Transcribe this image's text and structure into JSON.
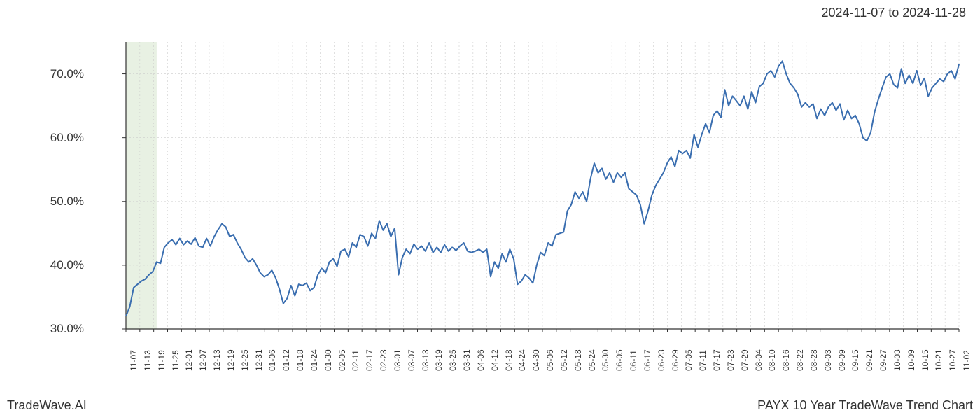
{
  "date_range": "2024-11-07 to 2024-11-28",
  "footer_left": "TradeWave.AI",
  "footer_right": "PAYX 10 Year TradeWave Trend Chart",
  "chart": {
    "type": "line",
    "line_color": "#3a6eb0",
    "line_width": 2.0,
    "background_color": "#ffffff",
    "grid_color": "#cccccc",
    "grid_style": "dashed",
    "axis_line_color": "#333333",
    "highlight_band_color": "#d8e8d0",
    "highlight_start_index": 0,
    "highlight_end_index": 8,
    "ylim": [
      30,
      75
    ],
    "yticks": [
      30.0,
      40.0,
      50.0,
      60.0,
      70.0
    ],
    "ytick_labels": [
      "30.0%",
      "40.0%",
      "50.0%",
      "60.0%",
      "70.0%"
    ],
    "xtick_labels": [
      "11-07",
      "11-13",
      "11-19",
      "11-25",
      "12-01",
      "12-07",
      "12-13",
      "12-19",
      "12-25",
      "12-31",
      "01-06",
      "01-12",
      "01-18",
      "01-24",
      "01-30",
      "02-05",
      "02-11",
      "02-17",
      "02-23",
      "03-01",
      "03-07",
      "03-13",
      "03-19",
      "03-25",
      "03-31",
      "04-06",
      "04-12",
      "04-18",
      "04-24",
      "04-30",
      "05-06",
      "05-12",
      "05-18",
      "05-24",
      "05-30",
      "06-05",
      "06-11",
      "06-17",
      "06-23",
      "06-29",
      "07-05",
      "07-11",
      "07-17",
      "07-23",
      "07-29",
      "08-04",
      "08-10",
      "08-16",
      "08-22",
      "08-28",
      "09-03",
      "09-09",
      "09-15",
      "09-21",
      "09-27",
      "10-03",
      "10-09",
      "10-15",
      "10-21",
      "10-27",
      "11-02"
    ],
    "values": [
      32.0,
      33.5,
      36.5,
      37.0,
      37.5,
      37.8,
      38.5,
      39.0,
      40.5,
      40.3,
      42.8,
      43.5,
      44.0,
      43.2,
      44.2,
      43.2,
      43.8,
      43.3,
      44.3,
      43.0,
      42.8,
      44.2,
      43.0,
      44.5,
      45.6,
      46.5,
      46.0,
      44.5,
      44.8,
      43.5,
      42.5,
      41.2,
      40.5,
      41.0,
      40.0,
      38.8,
      38.2,
      38.5,
      39.2,
      38.0,
      36.2,
      34.0,
      34.8,
      36.8,
      35.2,
      37.0,
      36.8,
      37.2,
      36.0,
      36.5,
      38.5,
      39.5,
      38.8,
      40.5,
      41.0,
      39.8,
      42.2,
      42.5,
      41.3,
      43.5,
      42.8,
      44.8,
      44.5,
      43.0,
      45.0,
      44.2,
      47.0,
      45.5,
      46.5,
      44.5,
      45.8,
      38.5,
      41.2,
      42.5,
      41.8,
      43.3,
      42.5,
      43.0,
      42.2,
      43.5,
      42.0,
      42.8,
      42.0,
      43.2,
      42.2,
      42.8,
      42.3,
      43.0,
      43.5,
      42.2,
      42.0,
      42.2,
      42.5,
      42.0,
      42.5,
      38.2,
      40.5,
      39.5,
      41.8,
      40.5,
      42.5,
      41.0,
      37.0,
      37.5,
      38.5,
      38.0,
      37.2,
      40.0,
      42.0,
      41.5,
      43.5,
      43.0,
      44.8,
      45.0,
      45.2,
      48.5,
      49.5,
      51.5,
      50.5,
      51.5,
      50.0,
      53.5,
      56.0,
      54.5,
      55.2,
      53.5,
      54.5,
      53.0,
      54.5,
      53.8,
      54.5,
      52.0,
      51.5,
      51.0,
      49.5,
      46.5,
      48.5,
      51.0,
      52.5,
      53.5,
      54.5,
      56.0,
      57.0,
      55.5,
      58.0,
      57.5,
      58.0,
      56.8,
      60.5,
      58.5,
      60.5,
      62.2,
      60.8,
      63.5,
      64.2,
      63.2,
      67.5,
      65.0,
      66.5,
      65.8,
      65.0,
      66.5,
      64.5,
      67.2,
      65.5,
      68.0,
      68.5,
      70.0,
      70.5,
      69.5,
      71.2,
      72.0,
      70.0,
      68.5,
      67.8,
      66.8,
      64.8,
      65.5,
      64.8,
      65.3,
      63.0,
      64.5,
      63.5,
      64.8,
      65.5,
      64.3,
      65.3,
      62.8,
      64.3,
      63.0,
      63.5,
      62.2,
      60.0,
      59.5,
      60.8,
      64.0,
      66.0,
      67.8,
      69.5,
      70.0,
      68.3,
      67.8,
      70.8,
      68.5,
      69.8,
      68.5,
      70.5,
      68.2,
      69.3,
      66.5,
      67.8,
      68.5,
      69.2,
      68.8,
      70.0,
      70.5,
      69.2,
      71.5
    ]
  }
}
